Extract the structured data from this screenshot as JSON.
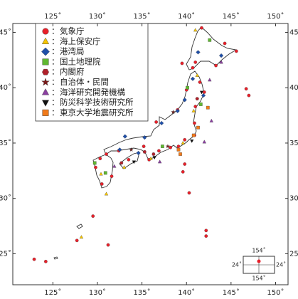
{
  "chart_data": {
    "type": "scatter",
    "xlim": [
      120.5,
      151.4
    ],
    "ylim": [
      22.2,
      45.8
    ],
    "xticks": [
      {
        "value": 125,
        "label": "125˚"
      },
      {
        "value": 130,
        "label": "130˚"
      },
      {
        "value": 135,
        "label": "135˚"
      },
      {
        "value": 140,
        "label": "140˚"
      },
      {
        "value": 145,
        "label": "145˚"
      },
      {
        "value": 150,
        "label": "150˚"
      }
    ],
    "yticks": [
      {
        "value": 25,
        "label": "25˚"
      },
      {
        "value": 30,
        "label": "30˚"
      },
      {
        "value": 35,
        "label": "35˚"
      },
      {
        "value": 40,
        "label": "40˚"
      },
      {
        "value": 45,
        "label": "45˚"
      }
    ],
    "legend_separator": "：",
    "series": [
      {
        "name": "気象庁",
        "color": "#e8202a",
        "marker": "circle",
        "x": [
          141.7,
          144.3,
          145.6,
          143.3,
          141.0,
          140.7,
          141.5,
          142.0,
          141.0,
          140.9,
          140.9,
          139.8,
          139.1,
          138.2,
          136.9,
          135.8,
          135.2,
          133.5,
          132.4,
          131.0,
          130.3,
          131.6,
          130.5,
          129.8,
          136.6,
          139.0,
          140.0,
          139.5,
          122.9,
          124.2,
          127.7,
          129.5,
          131.2,
          139.8,
          139.6,
          140.3,
          142.2,
          142.2,
          146.7,
          147.0
        ],
        "y": [
          45.4,
          44.0,
          43.3,
          42.0,
          42.3,
          41.8,
          40.5,
          39.6,
          38.3,
          36.8,
          35.7,
          35.3,
          34.7,
          34.6,
          34.3,
          33.5,
          34.7,
          33.5,
          34.3,
          34.0,
          33.6,
          32.0,
          31.3,
          32.8,
          36.9,
          38.0,
          39.8,
          42.2,
          24.5,
          24.3,
          26.2,
          28.4,
          25.8,
          33.1,
          32.4,
          30.5,
          27.1,
          26.6,
          39.9,
          39.3
        ]
      },
      {
        "name": "海上保安庁",
        "color": "#f5c400",
        "marker": "triangle",
        "x": [
          141.2,
          140.8,
          139.6,
          136.0,
          133.0,
          130.4,
          128.2,
          141.0,
          131.0
        ],
        "y": [
          41.1,
          37.9,
          35.0,
          33.6,
          32.8,
          32.2,
          26.5,
          45.2,
          30.4
        ]
      },
      {
        "name": "港湾局",
        "color": "#1f4fa8",
        "marker": "diamond",
        "x": [
          141.3,
          143.9,
          140.7,
          141.9,
          139.8,
          139.0,
          137.2,
          135.3,
          133.1,
          134.6,
          132.5
        ],
        "y": [
          43.2,
          42.9,
          40.8,
          39.3,
          38.9,
          37.9,
          36.8,
          35.5,
          35.6,
          34.1,
          34.4
        ]
      },
      {
        "name": "国土地理院",
        "color": "#5fb830",
        "marker": "square",
        "x": [
          142.6,
          140.1,
          137.3,
          129.7,
          130.9,
          141.6
        ],
        "y": [
          44.3,
          40.0,
          34.7,
          33.2,
          32.3,
          38.5
        ]
      },
      {
        "name": "内閣府",
        "color": "#b0202a",
        "marker": "hexagon",
        "x": [
          135.3,
          136.3,
          141.2,
          132.7
        ],
        "y": [
          34.2,
          34.0,
          39.0,
          33.2
        ]
      },
      {
        "name": "自治体・民間",
        "color": "#7a1a1a",
        "marker": "star",
        "x": [
          138.5,
          133.8,
          137.9
        ],
        "y": [
          37.8,
          34.4,
          34.7
        ]
      },
      {
        "name": "海洋研究開発機構",
        "color": "#8a3fa0",
        "marker": "triangle",
        "x": [
          143.9,
          142.6,
          142.0,
          142.8,
          137.0,
          131.9
        ],
        "y": [
          42.3,
          40.7,
          35.1,
          37.0,
          33.3,
          32.9
        ]
      },
      {
        "name": "防災科学技術研究所",
        "color": "#111111",
        "marker": "down",
        "x": [
          141.7,
          136.4,
          134.1,
          140.6
        ],
        "y": [
          39.6,
          33.7,
          33.3,
          35.2
        ]
      },
      {
        "name": "東京大学地震研究所",
        "color": "#f07a1a",
        "marker": "square",
        "x": [
          140.8,
          139.1,
          139.3,
          142.4,
          141.3
        ],
        "y": [
          35.7,
          34.4,
          34.0,
          38.2,
          36.4
        ]
      }
    ],
    "inset": {
      "top": "154˚",
      "bottom": "154˚",
      "left": "24˚",
      "right": "24˚"
    }
  }
}
